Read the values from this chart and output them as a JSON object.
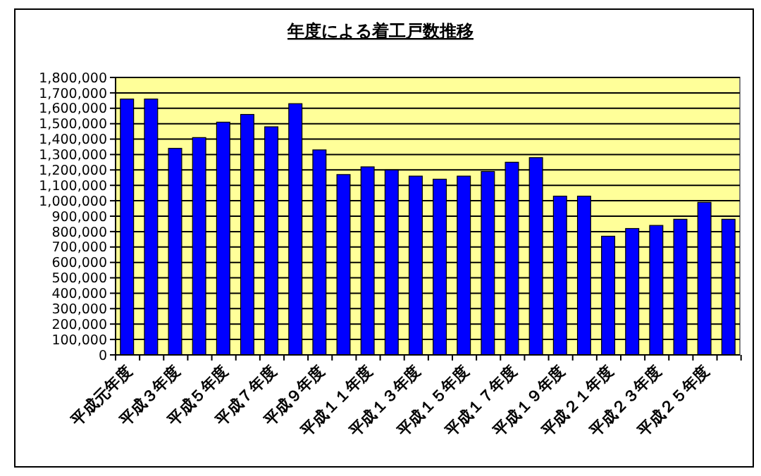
{
  "chart_data": {
    "type": "bar",
    "title": "年度による着工戸数推移",
    "categories": [
      "平成元年度",
      null,
      "平成３年度",
      null,
      "平成５年度",
      null,
      "平成７年度",
      null,
      "平成９年度",
      null,
      "平成１１年度",
      null,
      "平成１３年度",
      null,
      "平成１５年度",
      null,
      "平成１７年度",
      null,
      "平成１９年度",
      null,
      "平成２１年度",
      null,
      "平成２３年度",
      null,
      "平成２５年度",
      null
    ],
    "values": [
      1660000,
      1660000,
      1340000,
      1410000,
      1510000,
      1560000,
      1480000,
      1630000,
      1330000,
      1170000,
      1220000,
      1200000,
      1160000,
      1140000,
      1160000,
      1190000,
      1250000,
      1280000,
      1030000,
      1030000,
      770000,
      820000,
      840000,
      880000,
      990000,
      880000
    ],
    "color": "#0000ff",
    "ylim": [
      0,
      1800000
    ],
    "yticks": [
      {
        "value": 0,
        "label": "0"
      },
      {
        "value": 100000,
        "label": "100,000"
      },
      {
        "value": 200000,
        "label": "200,000"
      },
      {
        "value": 300000,
        "label": "300,000"
      },
      {
        "value": 400000,
        "label": "400,000"
      },
      {
        "value": 500000,
        "label": "500,000"
      },
      {
        "value": 600000,
        "label": "600,000"
      },
      {
        "value": 700000,
        "label": "700,000"
      },
      {
        "value": 800000,
        "label": "800,000"
      },
      {
        "value": 900000,
        "label": "900,000"
      },
      {
        "value": 1000000,
        "label": "1,000,000"
      },
      {
        "value": 1100000,
        "label": "1,100,000"
      },
      {
        "value": 1200000,
        "label": "1,200,000"
      },
      {
        "value": 1300000,
        "label": "1,300,000"
      },
      {
        "value": 1400000,
        "label": "1,400,000"
      },
      {
        "value": 1500000,
        "label": "1,500,000"
      },
      {
        "value": 1600000,
        "label": "1,600,000"
      },
      {
        "value": 1700000,
        "label": "1,700,000"
      },
      {
        "value": 1800000,
        "label": "1,800,000"
      }
    ],
    "grid": "y"
  }
}
